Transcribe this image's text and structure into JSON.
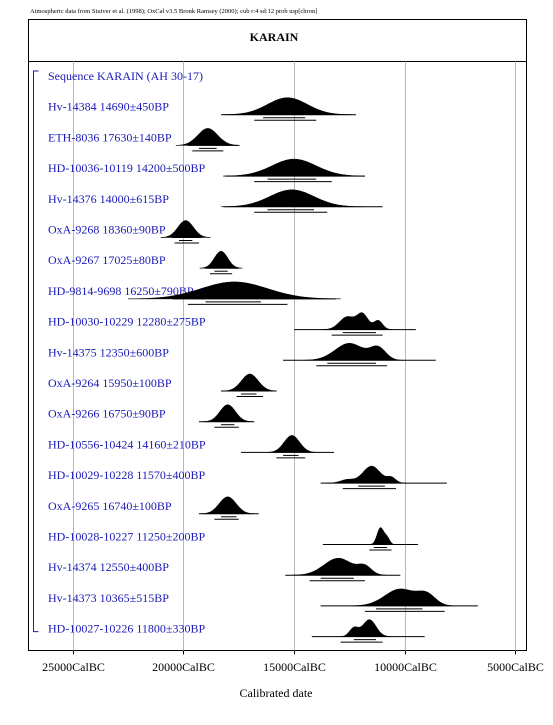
{
  "header_note": "Atmospheric data from Stuiver et al. (1998); OxCal v3.5 Bronk Ramsey (2000); cub r:4 sd:12 prob usp[chron]",
  "chart_data": {
    "type": "range",
    "title": "KARAIN",
    "xlabel": "Calibrated date",
    "xlim": [
      27000,
      4500
    ],
    "x_reversed": true,
    "grid": "vertical lines at ticks",
    "ticks": [
      {
        "value": 25000,
        "label": "25000CalBC"
      },
      {
        "value": 20000,
        "label": "20000CalBC"
      },
      {
        "value": 15000,
        "label": "15000CalBC"
      },
      {
        "value": 10000,
        "label": "10000CalBC"
      },
      {
        "value": 5000,
        "label": "5000CalBC"
      }
    ],
    "sequence_label": "Sequence KARAIN (AH 30-17)",
    "samples": [
      {
        "label": "Hv-14384  14690±450BP",
        "peaks": [
          [
            15300,
            1.0,
            900
          ]
        ],
        "range68": [
          16400,
          14500
        ],
        "range95": [
          16800,
          14000
        ],
        "prior": [
          18300,
          12200
        ]
      },
      {
        "label": "ETH-8036  17630±140BP",
        "peaks": [
          [
            18900,
            1.0,
            450
          ]
        ],
        "range68": [
          19300,
          18500
        ],
        "range95": [
          19600,
          18200
        ],
        "prior": [
          19800,
          17500
        ]
      },
      {
        "label": "HD-10036-10119  14200±500BP",
        "peaks": [
          [
            15000,
            1.0,
            1000
          ]
        ],
        "range68": [
          16200,
          14000
        ],
        "range95": [
          16800,
          13300
        ],
        "prior": [
          18100,
          11800
        ]
      },
      {
        "label": "Hv-14376  14000±615BP",
        "peaks": [
          [
            15100,
            1.0,
            1000
          ]
        ],
        "range68": [
          16200,
          14100
        ],
        "range95": [
          16800,
          13500
        ],
        "prior": [
          18200,
          11000
        ]
      },
      {
        "label": "OxA-9268  18360±90BP",
        "peaks": [
          [
            19900,
            1.0,
            350
          ]
        ],
        "range68": [
          20200,
          19600
        ],
        "range95": [
          20400,
          19300
        ],
        "prior": [
          20500,
          19200
        ]
      },
      {
        "label": "OxA-9267  17025±80BP",
        "peaks": [
          [
            18300,
            1.0,
            300
          ]
        ],
        "range68": [
          18600,
          18000
        ],
        "range95": [
          18800,
          17800
        ],
        "prior": [
          19000,
          17500
        ]
      },
      {
        "label": "HD-9814-9698  16250±790BP",
        "peaks": [
          [
            17700,
            1.0,
            1500
          ]
        ],
        "range68": [
          19000,
          16500
        ],
        "range95": [
          19800,
          15300
        ],
        "prior": [
          20500,
          13100
        ]
      },
      {
        "label": "HD-10030-10229  12280±275BP",
        "peaks": [
          [
            12600,
            0.85,
            350
          ],
          [
            11900,
            1.0,
            250
          ],
          [
            11200,
            0.6,
            200
          ]
        ],
        "range68": [
          12800,
          11300
        ],
        "range95": [
          13300,
          11000
        ],
        "prior": [
          15000,
          9500
        ]
      },
      {
        "label": "Hv-14375  12350±600BP",
        "peaks": [
          [
            12500,
            1.0,
            650
          ],
          [
            11200,
            0.7,
            350
          ]
        ],
        "range68": [
          13500,
          11300
        ],
        "range95": [
          14000,
          10800
        ],
        "prior": [
          15500,
          8600
        ]
      },
      {
        "label": "OxA-9264  15950±100BP",
        "peaks": [
          [
            17000,
            1.0,
            380
          ]
        ],
        "range68": [
          17400,
          16700
        ],
        "range95": [
          17600,
          16400
        ],
        "prior": [
          18300,
          15800
        ]
      },
      {
        "label": "OxA-9266  16750±90BP",
        "peaks": [
          [
            18000,
            1.0,
            350
          ]
        ],
        "range68": [
          18300,
          17700
        ],
        "range95": [
          18600,
          17500
        ],
        "prior": [
          19300,
          16800
        ]
      },
      {
        "label": "HD-10556-10424  14160±210BP",
        "peaks": [
          [
            15100,
            1.0,
            350
          ]
        ],
        "range68": [
          15500,
          14800
        ],
        "range95": [
          15800,
          14500
        ],
        "prior": [
          17400,
          13200
        ]
      },
      {
        "label": "HD-10029-10228  11570±400BP",
        "peaks": [
          [
            11500,
            1.0,
            400
          ],
          [
            12600,
            0.2,
            300
          ],
          [
            10600,
            0.3,
            200
          ]
        ],
        "range68": [
          12100,
          10900
        ],
        "range95": [
          12800,
          10400
        ],
        "prior": [
          13800,
          8100
        ]
      },
      {
        "label": "OxA-9265  16740±100BP",
        "peaks": [
          [
            18000,
            1.0,
            380
          ]
        ],
        "range68": [
          18300,
          17600
        ],
        "range95": [
          18600,
          17500
        ],
        "prior": [
          19300,
          16600
        ]
      },
      {
        "label": "HD-10028-10227  11250±200BP",
        "peaks": [
          [
            11100,
            1.0,
            150
          ],
          [
            10800,
            0.4,
            120
          ]
        ],
        "range68": [
          11400,
          10800
        ],
        "range95": [
          11600,
          10600
        ],
        "prior": [
          13700,
          9400
        ]
      },
      {
        "label": "Hv-14374  12550±400BP",
        "peaks": [
          [
            13000,
            1.0,
            650
          ],
          [
            11800,
            0.45,
            300
          ]
        ],
        "range68": [
          13800,
          12300
        ],
        "range95": [
          14300,
          11800
        ],
        "prior": [
          15400,
          10200
        ]
      },
      {
        "label": "Hv-14373  10365±515BP",
        "peaks": [
          [
            10200,
            1.0,
            700
          ],
          [
            9000,
            0.6,
            400
          ]
        ],
        "range68": [
          11300,
          9200
        ],
        "range95": [
          11800,
          8200
        ],
        "prior": [
          13800,
          6700
        ]
      },
      {
        "label": "HD-10027-10226  11800±330BP",
        "peaks": [
          [
            11600,
            1.0,
            300
          ],
          [
            12300,
            0.5,
            200
          ]
        ],
        "range68": [
          12300,
          11300
        ],
        "range95": [
          12900,
          11000
        ],
        "prior": [
          14200,
          9100
        ]
      }
    ]
  }
}
